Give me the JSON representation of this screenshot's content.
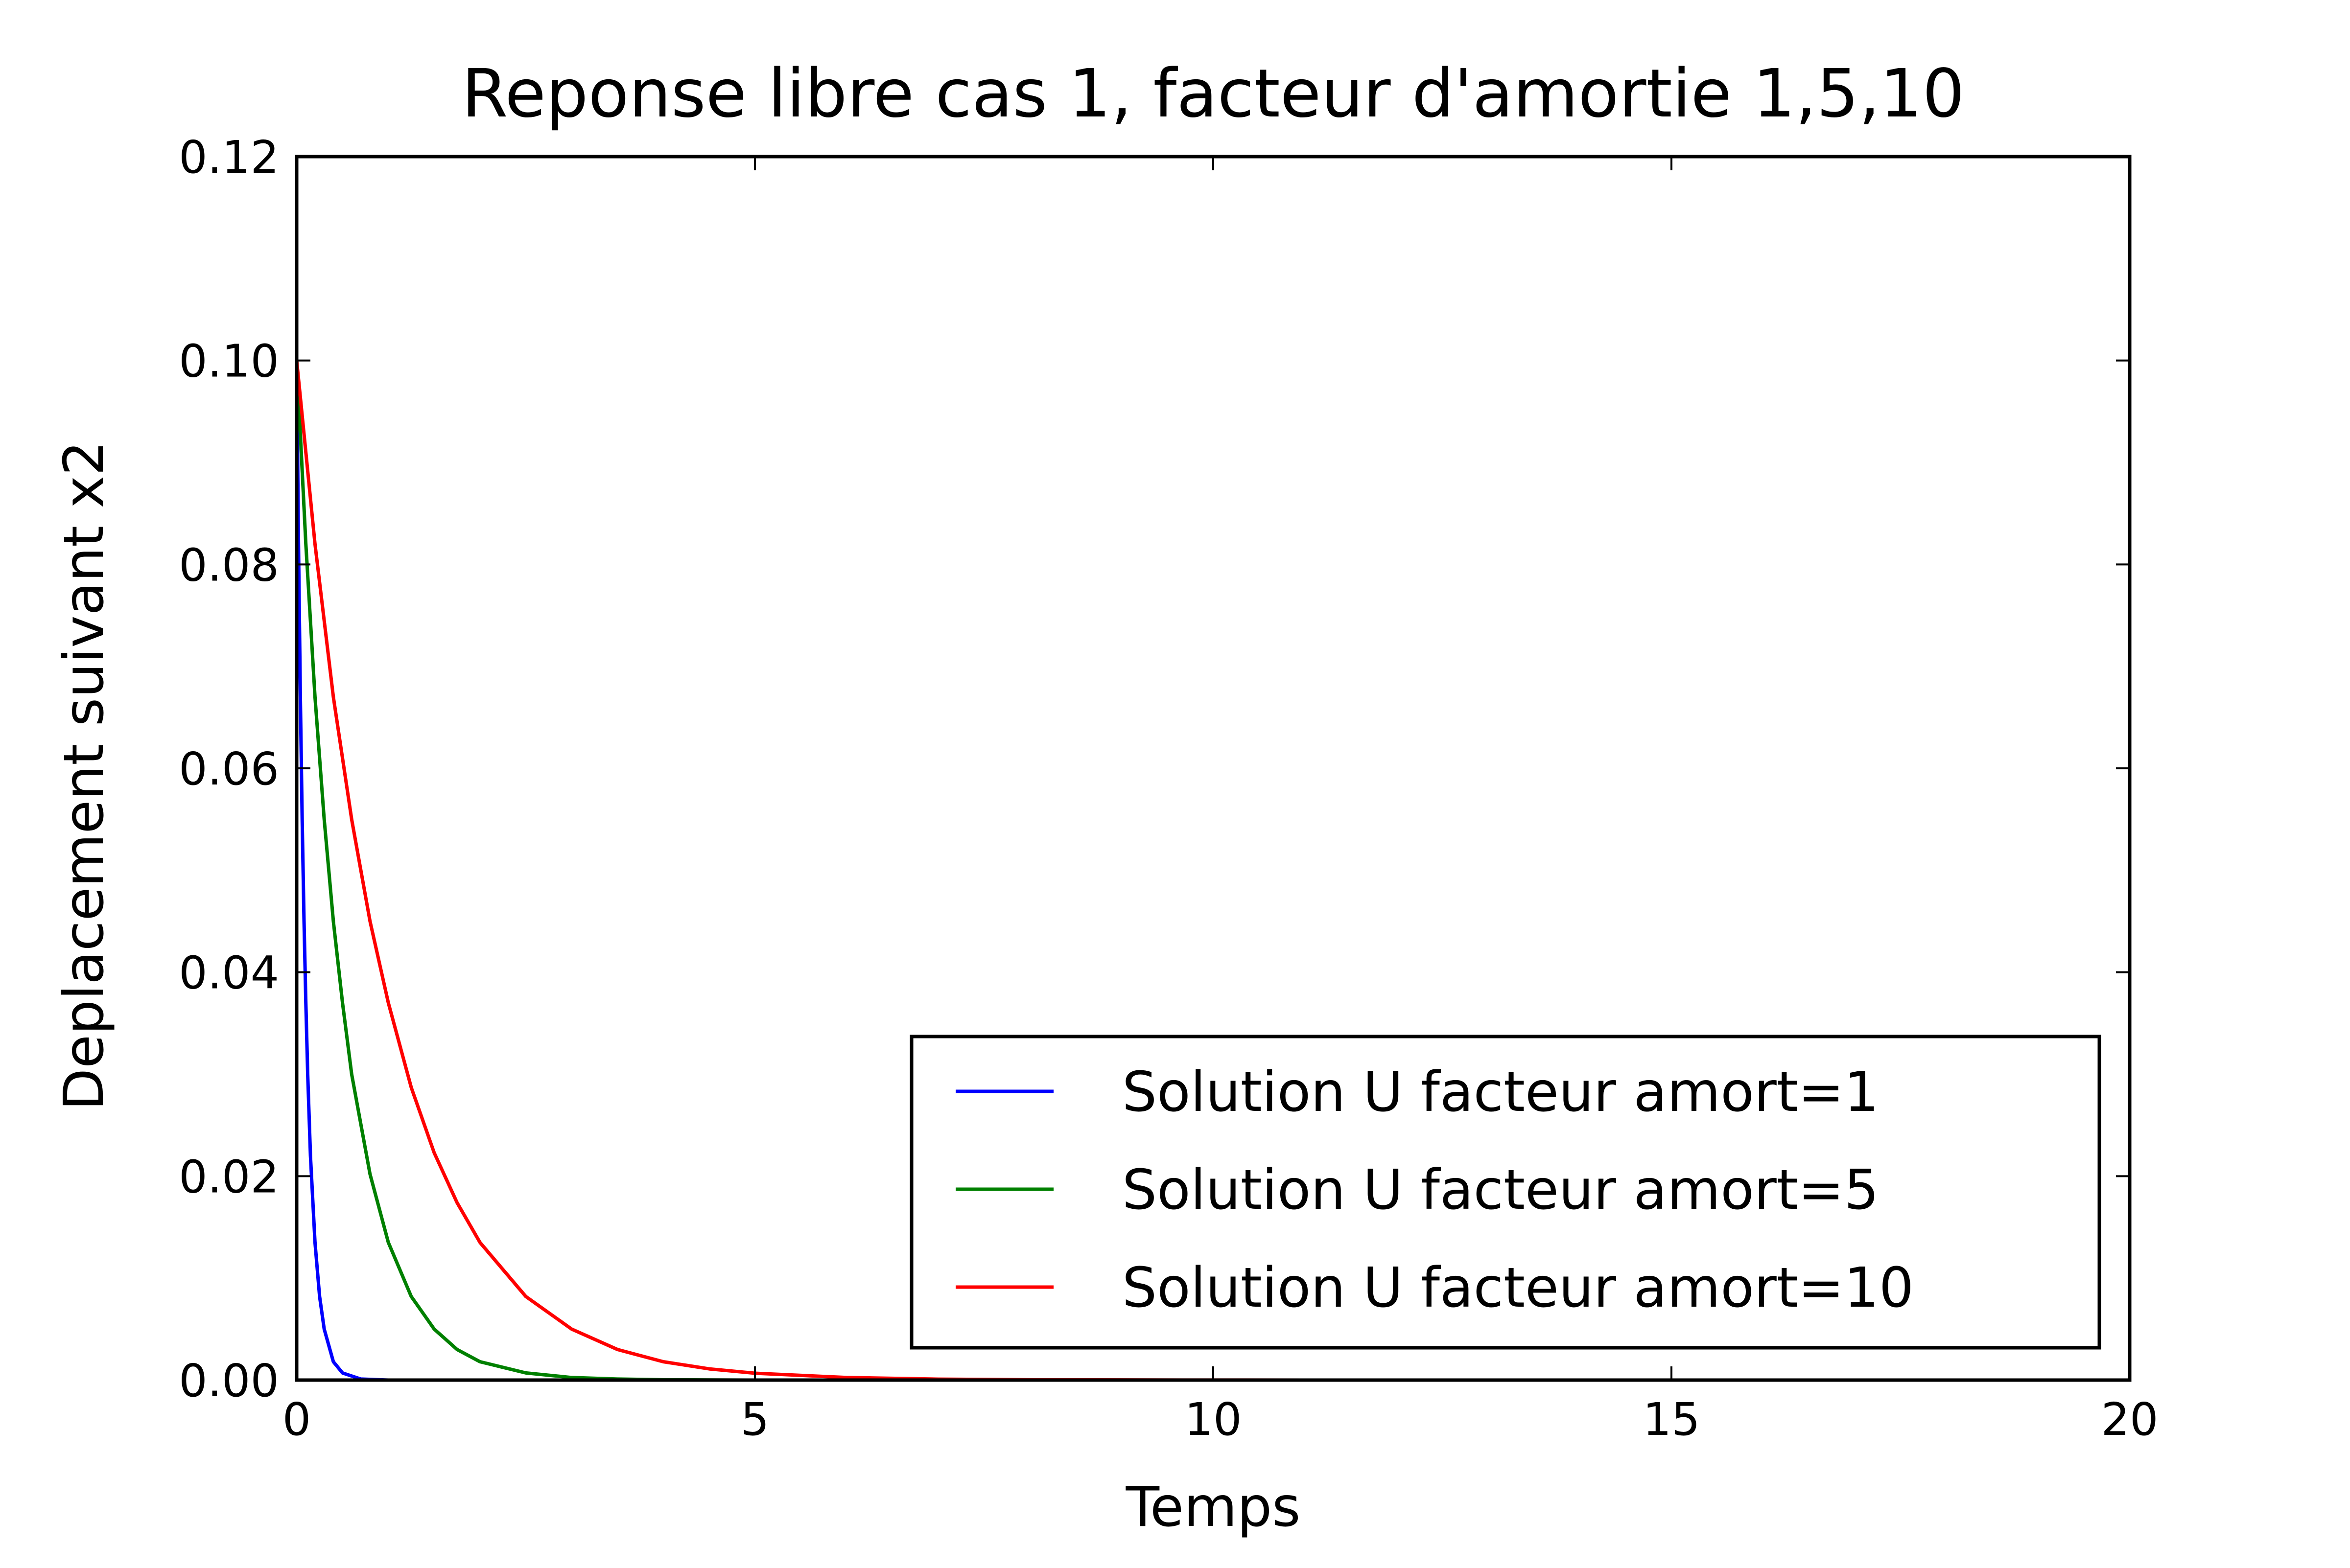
{
  "chart_data": {
    "type": "line",
    "title": "Reponse libre cas 1, facteur d'amortie 1,5,10",
    "xlabel": "Temps",
    "ylabel": "Deplacement suivant x2",
    "xlim": [
      0,
      20
    ],
    "ylim": [
      0,
      0.12
    ],
    "xticks": [
      0,
      5,
      10,
      15,
      20
    ],
    "xtick_labels": [
      "0",
      "5",
      "10",
      "15",
      "20"
    ],
    "yticks": [
      0,
      0.02,
      0.04,
      0.06,
      0.08,
      0.1,
      0.12
    ],
    "ytick_labels": [
      "0.00",
      "0.02",
      "0.04",
      "0.06",
      "0.08",
      "0.10",
      "0.12"
    ],
    "grid": false,
    "legend_position": "lower-right",
    "series": [
      {
        "name": "Solution U facteur amort=1",
        "color": "#0000ff",
        "x": [
          0,
          0.02,
          0.04,
          0.06,
          0.08,
          0.1,
          0.12,
          0.15,
          0.2,
          0.25,
          0.3,
          0.4,
          0.5,
          0.7,
          1,
          2,
          5,
          10,
          20
        ],
        "y": [
          0.1,
          0.082,
          0.067,
          0.055,
          0.045,
          0.037,
          0.03,
          0.022,
          0.0135,
          0.0082,
          0.005,
          0.0018,
          0.0007,
          0.0001,
          0,
          0,
          0,
          0,
          0
        ]
      },
      {
        "name": "Solution U facteur amort=5",
        "color": "#008000",
        "x": [
          0,
          0.1,
          0.2,
          0.3,
          0.4,
          0.5,
          0.6,
          0.8,
          1,
          1.25,
          1.5,
          1.75,
          2,
          2.5,
          3,
          3.5,
          4,
          5,
          6,
          8,
          10,
          15,
          20
        ],
        "y": [
          0.1,
          0.082,
          0.067,
          0.055,
          0.045,
          0.037,
          0.03,
          0.0202,
          0.0135,
          0.0082,
          0.005,
          0.003,
          0.0018,
          0.0007,
          0.00025,
          0.0001,
          3e-05,
          0,
          0,
          0,
          0,
          0,
          0
        ]
      },
      {
        "name": "Solution U facteur amort=10",
        "color": "#ff0000",
        "x": [
          0,
          0.2,
          0.4,
          0.6,
          0.8,
          1,
          1.25,
          1.5,
          1.75,
          2,
          2.5,
          3,
          3.5,
          4,
          4.5,
          5,
          6,
          7,
          8,
          10,
          12,
          15,
          20
        ],
        "y": [
          0.1,
          0.082,
          0.067,
          0.055,
          0.045,
          0.037,
          0.0287,
          0.0223,
          0.0174,
          0.0135,
          0.0082,
          0.005,
          0.003,
          0.0018,
          0.0011,
          0.00067,
          0.00025,
          9e-05,
          3e-05,
          5e-06,
          0,
          0,
          0
        ]
      }
    ]
  }
}
